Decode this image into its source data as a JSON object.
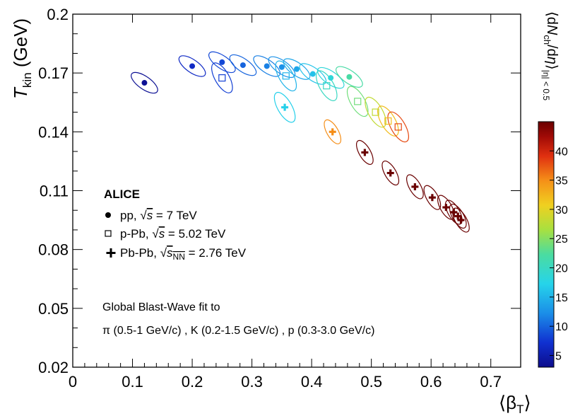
{
  "chart_data": {
    "type": "scatter",
    "title": "",
    "xlabel": "⟨β",
    "xlabel_sub": "T",
    "xlabel_close": "⟩",
    "ylabel": "T",
    "ylabel_sub": "kin",
    "ylabel_unit": " (GeV)",
    "xlim": [
      0,
      0.75
    ],
    "ylim": [
      0.02,
      0.2
    ],
    "x_ticks": [
      {
        "v": 0,
        "label": "0"
      },
      {
        "v": 0.1,
        "label": "0.1"
      },
      {
        "v": 0.2,
        "label": "0.2"
      },
      {
        "v": 0.3,
        "label": "0.3"
      },
      {
        "v": 0.4,
        "label": "0.4"
      },
      {
        "v": 0.5,
        "label": "0.5"
      },
      {
        "v": 0.6,
        "label": "0.6"
      },
      {
        "v": 0.7,
        "label": "0.7"
      }
    ],
    "y_ticks": [
      {
        "v": 0.02,
        "label": "0.02"
      },
      {
        "v": 0.05,
        "label": "0.05"
      },
      {
        "v": 0.08,
        "label": "0.08"
      },
      {
        "v": 0.11,
        "label": "0.11"
      },
      {
        "v": 0.14,
        "label": "0.14"
      },
      {
        "v": 0.17,
        "label": "0.17"
      },
      {
        "v": 0.2,
        "label": "0.2"
      }
    ],
    "colorbar": {
      "title_parts": [
        "⟨d",
        "N",
        "ch",
        "/d",
        "η",
        "⟩",
        "|η| < 0.5"
      ],
      "range": [
        3,
        45
      ],
      "ticks": [
        {
          "v": 5,
          "label": "5"
        },
        {
          "v": 10,
          "label": "10"
        },
        {
          "v": 15,
          "label": "15"
        },
        {
          "v": 20,
          "label": "20"
        },
        {
          "v": 25,
          "label": "25"
        },
        {
          "v": 30,
          "label": "30"
        },
        {
          "v": 35,
          "label": "35"
        },
        {
          "v": 40,
          "label": "40"
        }
      ]
    },
    "legend": {
      "position": "left",
      "header": "ALICE",
      "entries": [
        {
          "marker": "circle",
          "text_a": "pp, ",
          "sqrt": "√",
          "s": "s",
          "sub": "",
          "text_b": " = 7 TeV"
        },
        {
          "marker": "square",
          "text_a": "p-Pb, ",
          "sqrt": "√",
          "s": "s",
          "sub": "NN",
          "text_b": " = 5.02 TeV"
        },
        {
          "marker": "cross",
          "text_a": "Pb-Pb, ",
          "sqrt": "√",
          "s": "s",
          "sub": "NN",
          "text_b": " = 2.76 TeV"
        }
      ]
    },
    "annotations": [
      "Global Blast-Wave fit to",
      "π (0.5-1 GeV/c) , K (0.2-1.5 GeV/c) , p (0.3-3.0 GeV/c)"
    ],
    "series": [
      {
        "name": "pp, √s = 7 TeV",
        "marker": "circle",
        "points": [
          {
            "x": 0.12,
            "y": 0.165,
            "c": 3.5
          },
          {
            "x": 0.2,
            "y": 0.1735,
            "c": 6.5
          },
          {
            "x": 0.25,
            "y": 0.1755,
            "c": 8.5
          },
          {
            "x": 0.285,
            "y": 0.174,
            "c": 10
          },
          {
            "x": 0.325,
            "y": 0.1735,
            "c": 11.5
          },
          {
            "x": 0.35,
            "y": 0.173,
            "c": 12.5
          },
          {
            "x": 0.375,
            "y": 0.172,
            "c": 14
          },
          {
            "x": 0.402,
            "y": 0.1695,
            "c": 16
          },
          {
            "x": 0.432,
            "y": 0.1675,
            "c": 18.5
          },
          {
            "x": 0.463,
            "y": 0.168,
            "c": 22
          }
        ]
      },
      {
        "name": "p-Pb, √sNN = 5.02 TeV",
        "marker": "square",
        "points": [
          {
            "x": 0.25,
            "y": 0.1675,
            "c": 8
          },
          {
            "x": 0.357,
            "y": 0.1685,
            "c": 15
          },
          {
            "x": 0.425,
            "y": 0.1635,
            "c": 20
          },
          {
            "x": 0.477,
            "y": 0.1555,
            "c": 24
          },
          {
            "x": 0.507,
            "y": 0.15,
            "c": 28
          },
          {
            "x": 0.528,
            "y": 0.1455,
            "c": 32
          },
          {
            "x": 0.545,
            "y": 0.1425,
            "c": 38
          }
        ]
      },
      {
        "name": "Pb-Pb, √sNN = 2.76 TeV",
        "marker": "cross",
        "points": [
          {
            "x": 0.355,
            "y": 0.1525,
            "c": 17
          },
          {
            "x": 0.435,
            "y": 0.14,
            "c": 35
          },
          {
            "x": 0.489,
            "y": 0.1295,
            "c": 45
          },
          {
            "x": 0.532,
            "y": 0.119,
            "c": 45
          },
          {
            "x": 0.573,
            "y": 0.112,
            "c": 45
          },
          {
            "x": 0.602,
            "y": 0.1065,
            "c": 45
          },
          {
            "x": 0.625,
            "y": 0.1015,
            "c": 45
          },
          {
            "x": 0.638,
            "y": 0.099,
            "c": 45
          },
          {
            "x": 0.645,
            "y": 0.097,
            "c": 45
          },
          {
            "x": 0.65,
            "y": 0.095,
            "c": 45
          }
        ]
      }
    ]
  }
}
